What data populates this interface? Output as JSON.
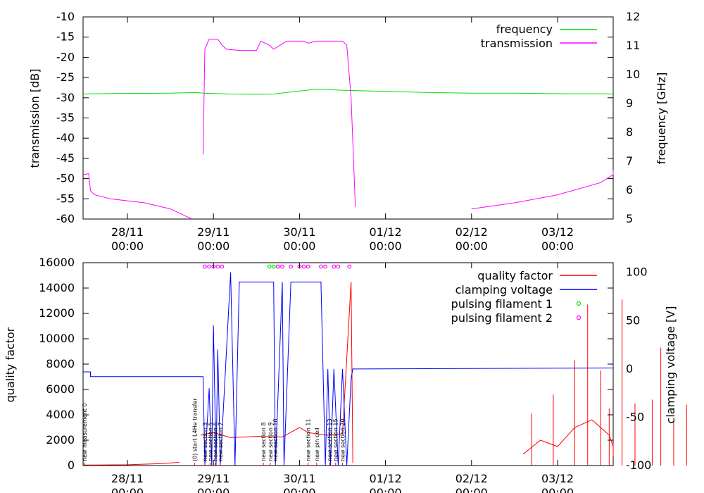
{
  "chart_data": [
    {
      "type": "line",
      "ylabel": "transmission [dB]",
      "y2label": "frequency [GHz]",
      "ylim": [
        -60,
        -10
      ],
      "y2lim": [
        5,
        12
      ],
      "yticks": [
        -10,
        -15,
        -20,
        -25,
        -30,
        -35,
        -40,
        -45,
        -50,
        -55,
        -60
      ],
      "y2ticks": [
        5,
        6,
        7,
        8,
        9,
        10,
        11,
        12
      ],
      "xticks": [
        {
          "l1": "28/11",
          "l2": "00:00"
        },
        {
          "l1": "29/11",
          "l2": "00:00"
        },
        {
          "l1": "30/11",
          "l2": "00:00"
        },
        {
          "l1": "01/12",
          "l2": "00:00"
        },
        {
          "l1": "02/12",
          "l2": "00:00"
        },
        {
          "l1": "03/12",
          "l2": "00:00"
        }
      ],
      "legend_position": "top-right",
      "legend": [
        {
          "name": "frequency",
          "color": "#00e000"
        },
        {
          "name": "transmission",
          "color": "#ff00ff"
        }
      ],
      "series": [
        {
          "name": "frequency",
          "axis": "y2",
          "color": "#00e000",
          "points": [
            [
              -0.53,
              9.33
            ],
            [
              -0.2,
              9.35
            ],
            [
              0.5,
              9.36
            ],
            [
              0.8,
              9.38
            ],
            [
              0.88,
              9.36
            ],
            [
              1.2,
              9.33
            ],
            [
              1.5,
              9.32
            ],
            [
              1.7,
              9.33
            ],
            [
              1.9,
              9.4
            ],
            [
              2.05,
              9.45
            ],
            [
              2.2,
              9.5
            ],
            [
              2.5,
              9.46
            ],
            [
              3.0,
              9.42
            ],
            [
              3.5,
              9.38
            ],
            [
              4.0,
              9.36
            ],
            [
              4.5,
              9.36
            ],
            [
              5.1,
              9.34
            ],
            [
              5.5,
              9.34
            ],
            [
              6.0,
              9.33
            ],
            [
              6.6,
              9.33
            ]
          ]
        },
        {
          "name": "transmission",
          "axis": "y1",
          "color": "#ff00ff",
          "points": [
            [
              -0.53,
              -49
            ],
            [
              -0.45,
              -48.8
            ],
            [
              -0.43,
              -53
            ],
            [
              -0.38,
              -54
            ],
            [
              -0.2,
              -55
            ],
            [
              0.2,
              -56
            ],
            [
              0.5,
              -57.5
            ],
            [
              0.7,
              -59.5
            ],
            [
              0.75,
              -60
            ],
            null,
            [
              0.88,
              -44
            ],
            [
              0.9,
              -18
            ],
            [
              0.95,
              -15.5
            ],
            [
              1.05,
              -15.5
            ],
            [
              1.1,
              -17
            ],
            [
              1.15,
              -18
            ],
            [
              1.3,
              -18.3
            ],
            [
              1.5,
              -18.3
            ],
            [
              1.55,
              -16
            ],
            [
              1.65,
              -17
            ],
            [
              1.7,
              -18
            ],
            [
              1.85,
              -16
            ],
            [
              2.05,
              -16
            ],
            [
              2.1,
              -16.5
            ],
            [
              2.2,
              -16
            ],
            [
              2.5,
              -16
            ],
            [
              2.55,
              -17
            ],
            [
              2.6,
              -30
            ],
            [
              2.65,
              -57
            ],
            null,
            [
              4.0,
              -57.5
            ],
            [
              4.5,
              -56
            ],
            [
              5.0,
              -54
            ],
            [
              5.5,
              -51
            ],
            [
              5.9,
              -49
            ],
            [
              6.3,
              -48
            ]
          ]
        }
      ]
    },
    {
      "type": "line",
      "ylabel": "quality factor",
      "y2label": "clamping voltage [V]",
      "ylim": [
        0,
        16000
      ],
      "y2lim": [
        -100,
        110
      ],
      "yticks": [
        0,
        2000,
        4000,
        6000,
        8000,
        10000,
        12000,
        14000,
        16000
      ],
      "y2ticks": [
        -100,
        -50,
        0,
        50,
        100
      ],
      "xticks": [
        {
          "l1": "28/11",
          "l2": "00:00"
        },
        {
          "l1": "29/11",
          "l2": "00:00"
        },
        {
          "l1": "30/11",
          "l2": "00:00"
        },
        {
          "l1": "01/12",
          "l2": "00:00"
        },
        {
          "l1": "02/12",
          "l2": "00:00"
        },
        {
          "l1": "03/12",
          "l2": "00:00"
        }
      ],
      "legend_position": "top-right",
      "legend": [
        {
          "name": "quality factor",
          "color": "#ff0000",
          "style": "line"
        },
        {
          "name": "clamping voltage",
          "color": "#0000ff",
          "style": "line"
        },
        {
          "name": "pulsing filament 1",
          "color": "#00e000",
          "style": "point"
        },
        {
          "name": "pulsing filament 2",
          "color": "#ff00ff",
          "style": "point"
        }
      ],
      "series": [
        {
          "name": "quality factor",
          "axis": "y1",
          "color": "#ff0000",
          "points": [
            [
              -0.53,
              40
            ],
            [
              0,
              60
            ],
            [
              0.4,
              150
            ],
            [
              0.6,
              250
            ],
            null,
            [
              0.85,
              2400
            ],
            [
              1.0,
              2600
            ],
            [
              1.2,
              2200
            ],
            [
              1.5,
              2300
            ],
            [
              1.8,
              2250
            ],
            [
              2.0,
              3000
            ],
            [
              2.1,
              2600
            ],
            [
              2.3,
              2400
            ],
            [
              2.5,
              2500
            ],
            [
              2.6,
              14500
            ],
            [
              2.62,
              200
            ],
            null,
            [
              4.6,
              900
            ],
            [
              4.8,
              2000
            ],
            [
              5.0,
              1500
            ],
            [
              5.2,
              3000
            ],
            [
              5.4,
              3600
            ],
            [
              5.6,
              2400
            ],
            [
              5.8,
              1500
            ],
            [
              6.0,
              1200
            ],
            [
              6.2,
              1800
            ],
            [
              6.4,
              1000
            ],
            [
              6.6,
              700
            ]
          ],
          "spikes": [
            [
              4.7,
              4100
            ],
            [
              4.95,
              5600
            ],
            [
              5.2,
              8300
            ],
            [
              5.35,
              12700
            ],
            [
              5.5,
              7500
            ],
            [
              5.6,
              4500
            ],
            [
              5.75,
              13100
            ],
            [
              5.9,
              4900
            ],
            [
              6.1,
              5200
            ],
            [
              6.2,
              9300
            ],
            [
              6.35,
              3500
            ],
            [
              6.5,
              4800
            ]
          ]
        },
        {
          "name": "clamping voltage",
          "axis": "y2",
          "color": "#0000ff",
          "points": [
            [
              -0.53,
              -3
            ],
            [
              -0.43,
              -3
            ],
            [
              -0.43,
              -8
            ],
            [
              0.88,
              -8
            ],
            [
              0.9,
              -100
            ],
            [
              0.95,
              -20
            ],
            [
              0.98,
              -100
            ],
            [
              1.0,
              45
            ],
            [
              1.03,
              -100
            ],
            [
              1.05,
              20
            ],
            [
              1.08,
              -100
            ],
            [
              1.2,
              100
            ],
            [
              1.25,
              -100
            ],
            [
              1.3,
              90
            ],
            [
              1.7,
              90
            ],
            [
              1.72,
              -100
            ],
            [
              1.8,
              90
            ],
            [
              1.82,
              -100
            ],
            [
              1.9,
              90
            ],
            [
              2.25,
              90
            ],
            [
              2.3,
              -100
            ],
            [
              2.33,
              0
            ],
            [
              2.36,
              -100
            ],
            [
              2.4,
              0
            ],
            [
              2.45,
              -100
            ],
            [
              2.5,
              0
            ],
            [
              2.55,
              -100
            ],
            [
              2.6,
              -10
            ],
            [
              2.62,
              0
            ],
            [
              6.6,
              1
            ]
          ]
        },
        {
          "name": "pulsing filament 1",
          "axis": "y2",
          "color": "#00e000",
          "type": "scatter",
          "points": [
            [
              1.65,
              106
            ],
            [
              1.7,
              106
            ],
            [
              1.75,
              106
            ]
          ]
        },
        {
          "name": "pulsing filament 2",
          "axis": "y2",
          "color": "#ff00ff",
          "type": "scatter",
          "points": [
            [
              0.9,
              106
            ],
            [
              0.95,
              106
            ],
            [
              1.0,
              106
            ],
            [
              1.05,
              106
            ],
            [
              1.1,
              106
            ],
            [
              1.75,
              106
            ],
            [
              1.8,
              106
            ],
            [
              1.9,
              106
            ],
            [
              2.0,
              106
            ],
            [
              2.05,
              106
            ],
            [
              2.1,
              106
            ],
            [
              2.25,
              106
            ],
            [
              2.3,
              106
            ],
            [
              2.4,
              106
            ],
            [
              2.45,
              106
            ],
            [
              2.58,
              106
            ]
          ]
        }
      ],
      "annotations": [
        {
          "x": -0.5,
          "text": "new measurement 0"
        },
        {
          "x": 0.78,
          "text": "(0) start L4He transfer"
        },
        {
          "x": 0.9,
          "text": "new section 3"
        },
        {
          "x": 0.96,
          "text": "new section 5"
        },
        {
          "x": 1.02,
          "text": "new section 6"
        },
        {
          "x": 1.08,
          "text": "new section 7"
        },
        {
          "x": 1.58,
          "text": "new section 8"
        },
        {
          "x": 1.66,
          "text": "new section 9"
        },
        {
          "x": 1.72,
          "text": "new section 10"
        },
        {
          "x": 2.1,
          "text": "new section 11"
        },
        {
          "x": 2.2,
          "text": "new pin cell"
        },
        {
          "x": 2.35,
          "text": "new section 13"
        },
        {
          "x": 2.42,
          "text": "new section 15"
        },
        {
          "x": 2.5,
          "text": "new section 20"
        }
      ]
    }
  ]
}
